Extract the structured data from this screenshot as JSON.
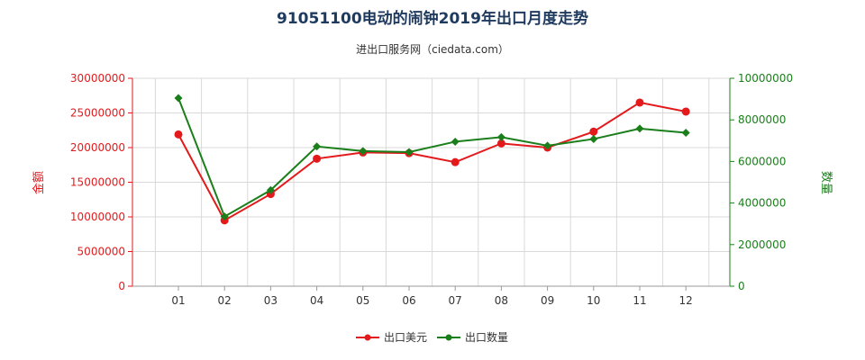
{
  "colors": {
    "left_axis": "#e31a1c",
    "right_axis": "#1a7f1a",
    "grid": "#d9d9d9",
    "title": "#1f3a5f"
  },
  "chart_data": {
    "type": "line",
    "title": "91051100电动的闹钟2019年出口月度走势",
    "subtitle": "进出口服务网（ciedata.com）",
    "categories": [
      "01",
      "02",
      "03",
      "04",
      "05",
      "06",
      "07",
      "08",
      "09",
      "10",
      "11",
      "12"
    ],
    "y_left": {
      "label": "金额",
      "ylim": [
        0,
        30000000
      ],
      "ticks": [
        0,
        5000000,
        10000000,
        15000000,
        20000000,
        25000000,
        30000000
      ]
    },
    "y_right": {
      "label": "数量",
      "ylim": [
        0,
        10000000
      ],
      "ticks": [
        0,
        2000000,
        4000000,
        6000000,
        8000000,
        10000000
      ]
    },
    "grid": true,
    "legend_position": "bottom",
    "series": [
      {
        "name": "出口美元",
        "axis": "left",
        "color": "#e31a1c",
        "values": [
          21900000,
          9500000,
          13300000,
          18400000,
          19300000,
          19200000,
          17900000,
          20600000,
          20000000,
          22300000,
          26500000,
          25200000
        ]
      },
      {
        "name": "出口数量",
        "axis": "right",
        "color": "#1a7f1a",
        "values": [
          9050000,
          3350000,
          4620000,
          6720000,
          6500000,
          6450000,
          6950000,
          7170000,
          6760000,
          7080000,
          7580000,
          7380000
        ]
      }
    ]
  }
}
